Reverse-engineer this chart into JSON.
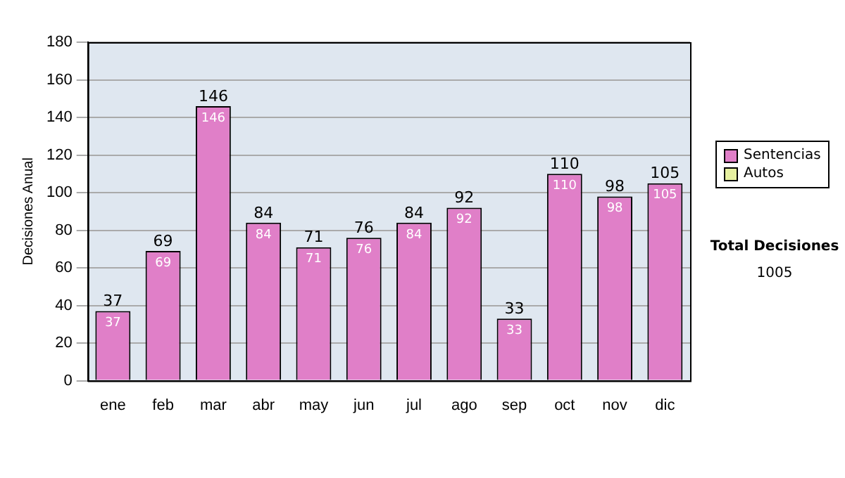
{
  "chart_data": {
    "type": "bar",
    "stacked": true,
    "ylabel": "Decisiones Anual",
    "categories": [
      "ene",
      "feb",
      "mar",
      "abr",
      "may",
      "jun",
      "jul",
      "ago",
      "sep",
      "oct",
      "nov",
      "dic"
    ],
    "series": [
      {
        "name": "Sentencias",
        "color": "#e07fc8",
        "values": [
          37,
          69,
          146,
          84,
          71,
          76,
          84,
          92,
          33,
          110,
          98,
          105
        ],
        "value_labels": [
          "37",
          "69",
          "146",
          "84",
          "71",
          "76",
          "84",
          "92",
          "33",
          "110",
          "98",
          "105"
        ]
      },
      {
        "name": "Autos",
        "color": "#e6f0a0",
        "values": [
          0,
          0,
          0,
          0,
          0,
          0,
          0,
          0,
          0,
          0,
          0,
          0
        ]
      }
    ],
    "totals": [
      "37",
      "69",
      "146",
      "84",
      "71",
      "76",
      "84",
      "92",
      "33",
      "110",
      "98",
      "105"
    ],
    "ylim": [
      0,
      180
    ],
    "yticks": [
      0,
      20,
      40,
      60,
      80,
      100,
      120,
      140,
      160,
      180
    ],
    "grid": "y",
    "legend": "right",
    "annotations": [
      "Total Decisiones",
      "1005"
    ]
  }
}
